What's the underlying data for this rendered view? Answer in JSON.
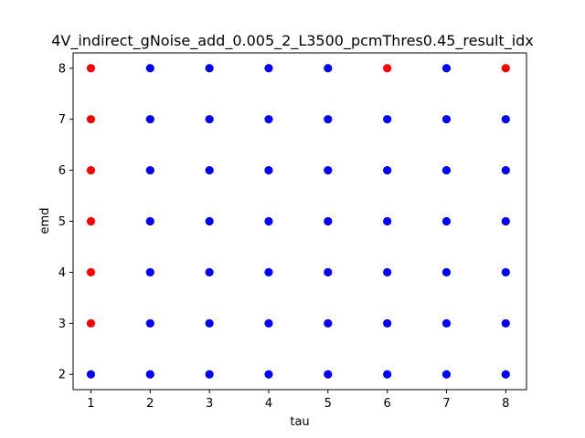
{
  "chart_data": {
    "type": "scatter",
    "title": "4V_indirect_gNoise_add_0.005_2_L3500_pcmThres0.45_result_idx",
    "xlabel": "tau",
    "ylabel": "emd",
    "xlim": [
      0.7,
      8.35
    ],
    "ylim": [
      1.7,
      8.3
    ],
    "xticks": [
      1,
      2,
      3,
      4,
      5,
      6,
      7,
      8
    ],
    "yticks": [
      2,
      3,
      4,
      5,
      6,
      7,
      8
    ],
    "grid": false,
    "legend": "none",
    "colors": {
      "blue": "#0000ff",
      "red": "#ff0000"
    },
    "points": [
      {
        "x": 1,
        "y": 2,
        "color": "blue"
      },
      {
        "x": 1,
        "y": 3,
        "color": "red"
      },
      {
        "x": 1,
        "y": 4,
        "color": "red"
      },
      {
        "x": 1,
        "y": 5,
        "color": "red"
      },
      {
        "x": 1,
        "y": 6,
        "color": "red"
      },
      {
        "x": 1,
        "y": 7,
        "color": "red"
      },
      {
        "x": 1,
        "y": 8,
        "color": "red"
      },
      {
        "x": 2,
        "y": 2,
        "color": "blue"
      },
      {
        "x": 2,
        "y": 3,
        "color": "blue"
      },
      {
        "x": 2,
        "y": 4,
        "color": "blue"
      },
      {
        "x": 2,
        "y": 5,
        "color": "blue"
      },
      {
        "x": 2,
        "y": 6,
        "color": "blue"
      },
      {
        "x": 2,
        "y": 7,
        "color": "blue"
      },
      {
        "x": 2,
        "y": 8,
        "color": "blue"
      },
      {
        "x": 3,
        "y": 2,
        "color": "blue"
      },
      {
        "x": 3,
        "y": 3,
        "color": "blue"
      },
      {
        "x": 3,
        "y": 4,
        "color": "blue"
      },
      {
        "x": 3,
        "y": 5,
        "color": "blue"
      },
      {
        "x": 3,
        "y": 6,
        "color": "blue"
      },
      {
        "x": 3,
        "y": 7,
        "color": "blue"
      },
      {
        "x": 3,
        "y": 8,
        "color": "blue"
      },
      {
        "x": 4,
        "y": 2,
        "color": "blue"
      },
      {
        "x": 4,
        "y": 3,
        "color": "blue"
      },
      {
        "x": 4,
        "y": 4,
        "color": "blue"
      },
      {
        "x": 4,
        "y": 5,
        "color": "blue"
      },
      {
        "x": 4,
        "y": 6,
        "color": "blue"
      },
      {
        "x": 4,
        "y": 7,
        "color": "blue"
      },
      {
        "x": 4,
        "y": 8,
        "color": "blue"
      },
      {
        "x": 5,
        "y": 2,
        "color": "blue"
      },
      {
        "x": 5,
        "y": 3,
        "color": "blue"
      },
      {
        "x": 5,
        "y": 4,
        "color": "blue"
      },
      {
        "x": 5,
        "y": 5,
        "color": "blue"
      },
      {
        "x": 5,
        "y": 6,
        "color": "blue"
      },
      {
        "x": 5,
        "y": 7,
        "color": "blue"
      },
      {
        "x": 5,
        "y": 8,
        "color": "blue"
      },
      {
        "x": 6,
        "y": 2,
        "color": "blue"
      },
      {
        "x": 6,
        "y": 3,
        "color": "blue"
      },
      {
        "x": 6,
        "y": 4,
        "color": "blue"
      },
      {
        "x": 6,
        "y": 5,
        "color": "blue"
      },
      {
        "x": 6,
        "y": 6,
        "color": "blue"
      },
      {
        "x": 6,
        "y": 7,
        "color": "blue"
      },
      {
        "x": 6,
        "y": 8,
        "color": "red"
      },
      {
        "x": 7,
        "y": 2,
        "color": "blue"
      },
      {
        "x": 7,
        "y": 3,
        "color": "blue"
      },
      {
        "x": 7,
        "y": 4,
        "color": "blue"
      },
      {
        "x": 7,
        "y": 5,
        "color": "blue"
      },
      {
        "x": 7,
        "y": 6,
        "color": "blue"
      },
      {
        "x": 7,
        "y": 7,
        "color": "blue"
      },
      {
        "x": 7,
        "y": 8,
        "color": "blue"
      },
      {
        "x": 8,
        "y": 2,
        "color": "blue"
      },
      {
        "x": 8,
        "y": 3,
        "color": "blue"
      },
      {
        "x": 8,
        "y": 4,
        "color": "blue"
      },
      {
        "x": 8,
        "y": 5,
        "color": "blue"
      },
      {
        "x": 8,
        "y": 6,
        "color": "blue"
      },
      {
        "x": 8,
        "y": 7,
        "color": "blue"
      },
      {
        "x": 8,
        "y": 8,
        "color": "red"
      }
    ]
  }
}
